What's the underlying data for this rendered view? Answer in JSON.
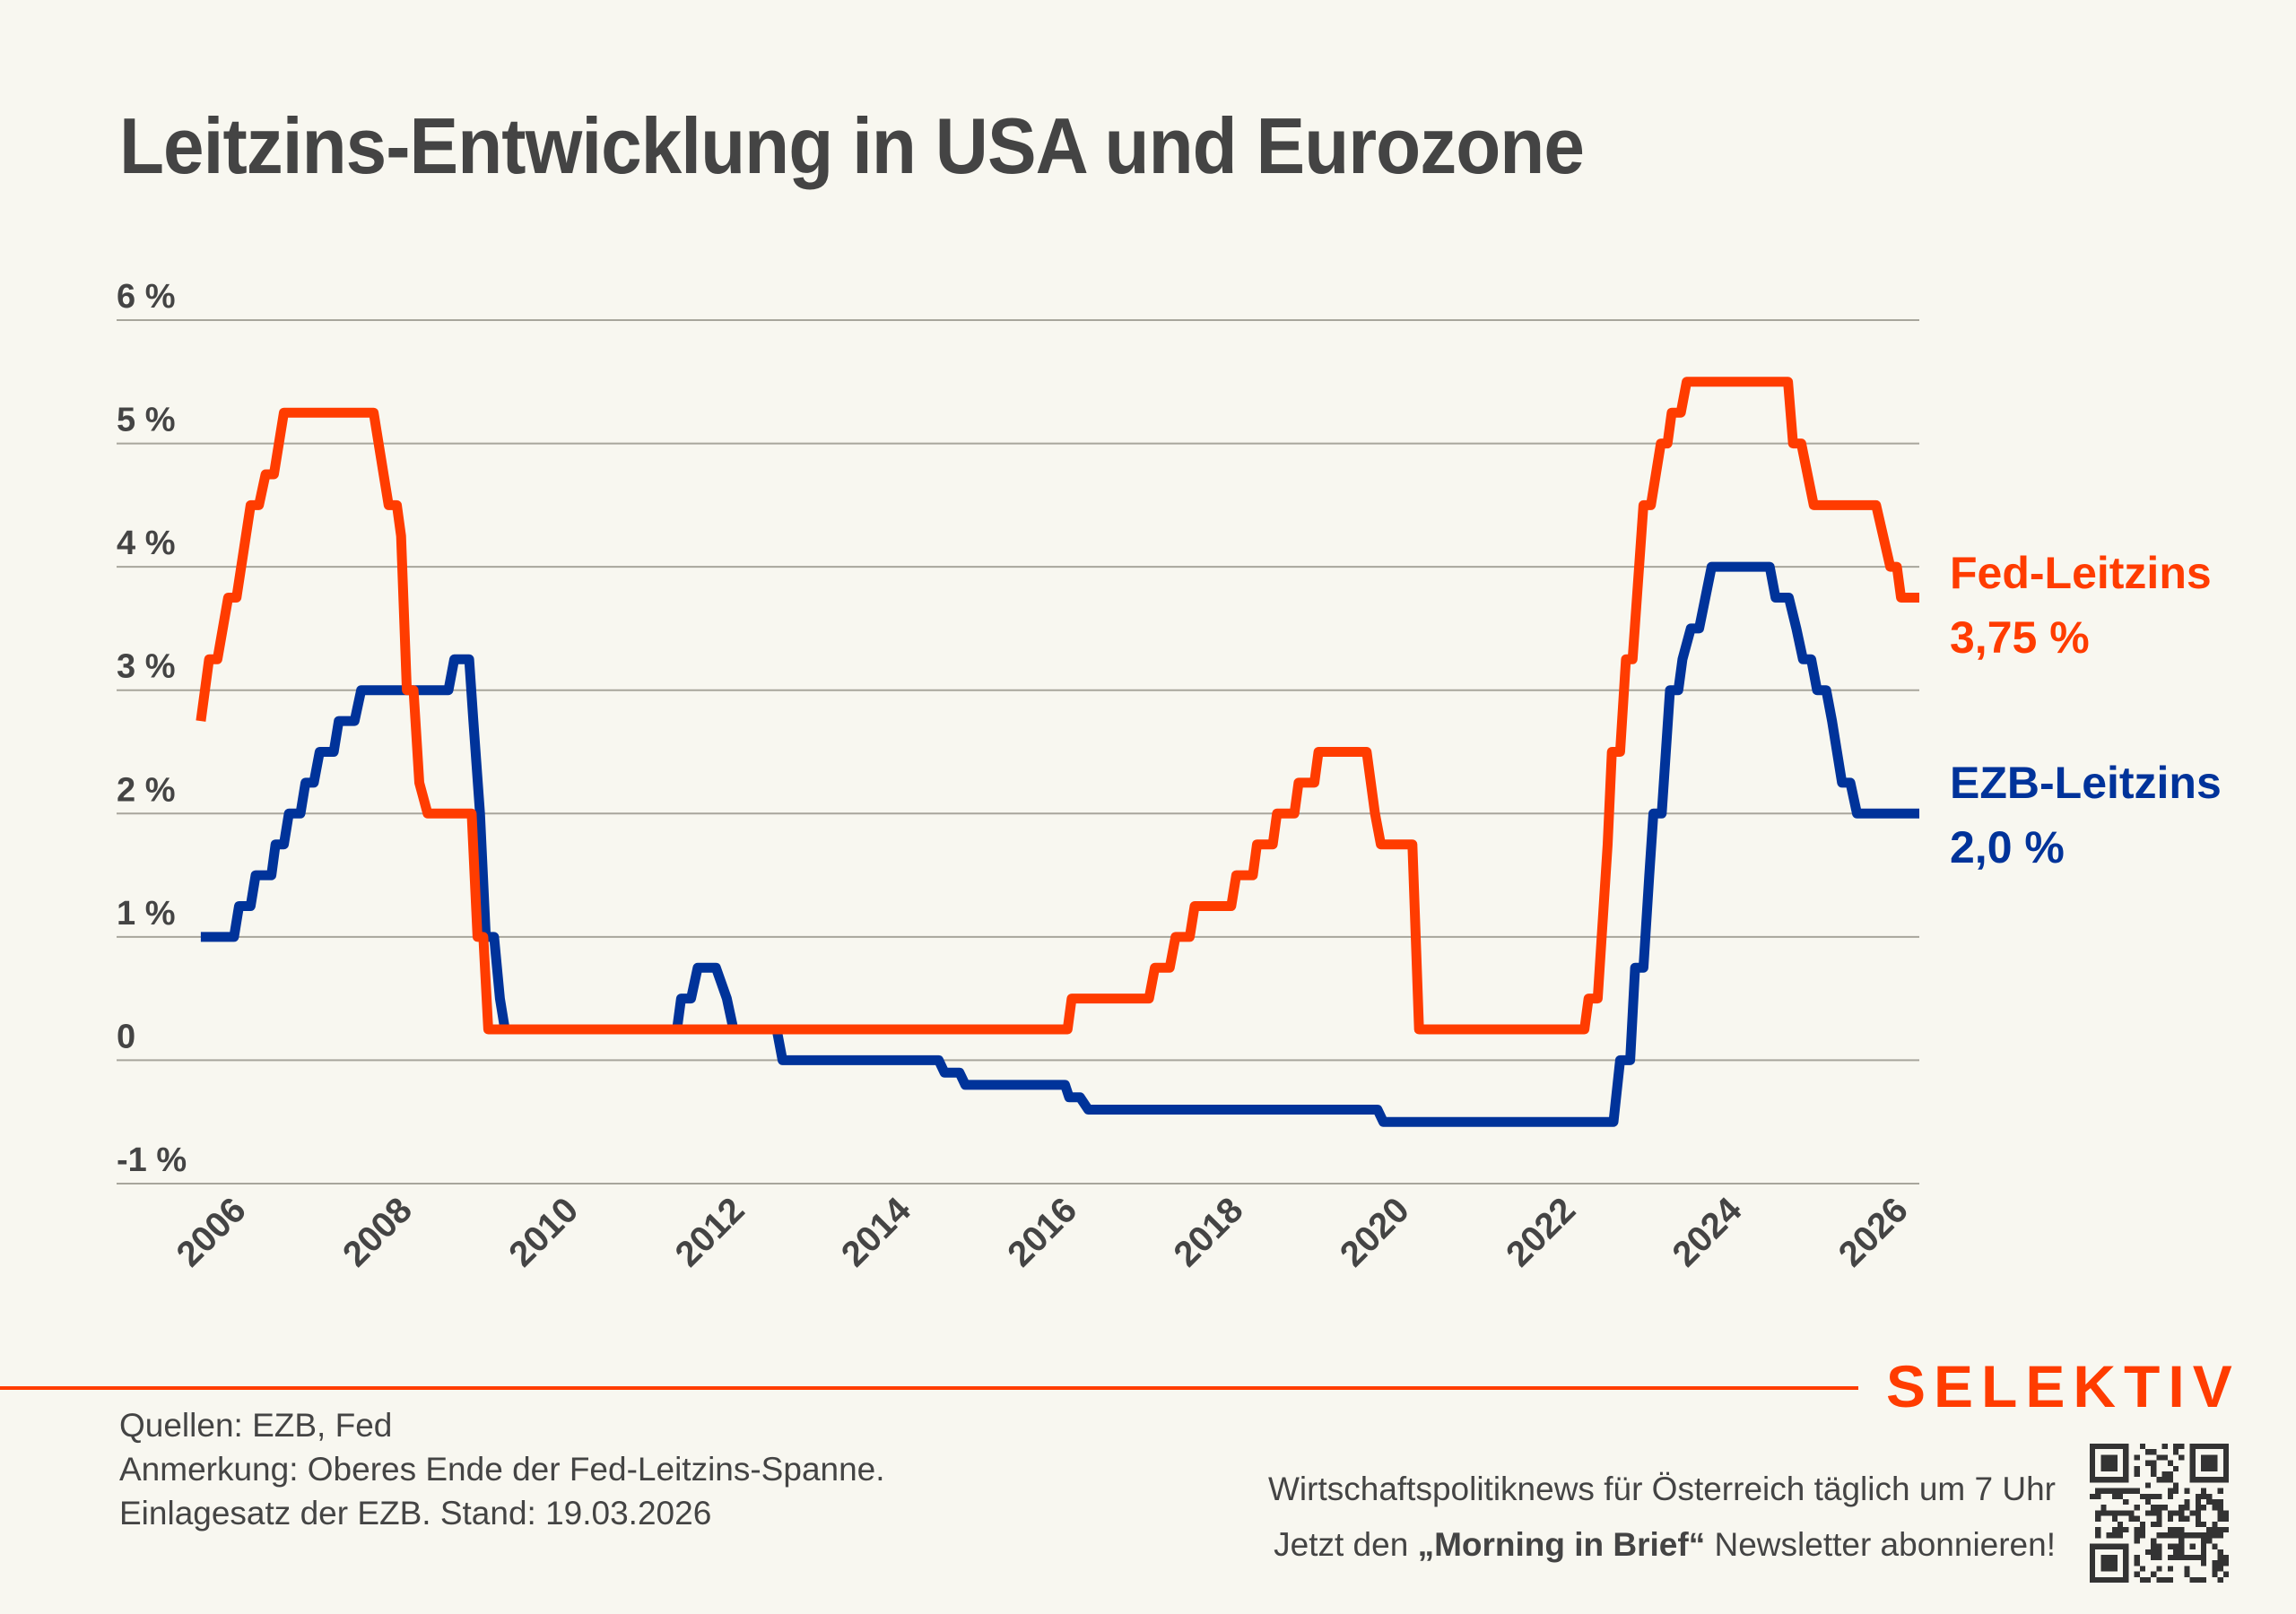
{
  "header": {
    "title": "Leitzins-Entwicklung in USA und Eurozone"
  },
  "chart_data": {
    "type": "line",
    "title": "Leitzins-Entwicklung in USA und Eurozone",
    "xlabel": "",
    "ylabel": "",
    "xlim": [
      2005.5,
      2026.2
    ],
    "ylim": [
      -1,
      6
    ],
    "grid": true,
    "legend": "right (end-of-line labels)",
    "y_ticks": [
      {
        "value": 6,
        "label": "6 %"
      },
      {
        "value": 5,
        "label": "5 %"
      },
      {
        "value": 4,
        "label": "4 %"
      },
      {
        "value": 3,
        "label": "3 %"
      },
      {
        "value": 2,
        "label": "2 %"
      },
      {
        "value": 1,
        "label": "1 %"
      },
      {
        "value": 0,
        "label": "0"
      },
      {
        "value": -1,
        "label": "-1 %"
      }
    ],
    "x_ticks": [
      {
        "value": 2006,
        "label": "2006"
      },
      {
        "value": 2008,
        "label": "2008"
      },
      {
        "value": 2010,
        "label": "2010"
      },
      {
        "value": 2012,
        "label": "2012"
      },
      {
        "value": 2014,
        "label": "2014"
      },
      {
        "value": 2016,
        "label": "2016"
      },
      {
        "value": 2018,
        "label": "2018"
      },
      {
        "value": 2020,
        "label": "2020"
      },
      {
        "value": 2022,
        "label": "2022"
      },
      {
        "value": 2024,
        "label": "2024"
      },
      {
        "value": 2026,
        "label": "2026"
      }
    ],
    "series": [
      {
        "name": "Fed-Leitzins",
        "color": "#ff3c00",
        "end_label": "Fed-Leitzins",
        "end_value_label": "3,75 %",
        "points": [
          [
            2005.52,
            2.75
          ],
          [
            2005.62,
            3.25
          ],
          [
            2005.72,
            3.25
          ],
          [
            2005.85,
            3.75
          ],
          [
            2005.95,
            3.75
          ],
          [
            2006.12,
            4.5
          ],
          [
            2006.22,
            4.5
          ],
          [
            2006.3,
            4.75
          ],
          [
            2006.4,
            4.75
          ],
          [
            2006.52,
            5.25
          ],
          [
            2007.6,
            5.25
          ],
          [
            2007.72,
            4.75
          ],
          [
            2007.78,
            4.5
          ],
          [
            2007.88,
            4.5
          ],
          [
            2007.93,
            4.25
          ],
          [
            2008.0,
            3.0
          ],
          [
            2008.08,
            3.0
          ],
          [
            2008.15,
            2.25
          ],
          [
            2008.25,
            2.0
          ],
          [
            2008.78,
            2.0
          ],
          [
            2008.85,
            1.0
          ],
          [
            2008.92,
            1.0
          ],
          [
            2008.98,
            0.25
          ],
          [
            2015.95,
            0.25
          ],
          [
            2016.0,
            0.5
          ],
          [
            2016.93,
            0.5
          ],
          [
            2017.0,
            0.75
          ],
          [
            2017.18,
            0.75
          ],
          [
            2017.25,
            1.0
          ],
          [
            2017.42,
            1.0
          ],
          [
            2017.48,
            1.25
          ],
          [
            2017.92,
            1.25
          ],
          [
            2017.98,
            1.5
          ],
          [
            2018.18,
            1.5
          ],
          [
            2018.23,
            1.75
          ],
          [
            2018.42,
            1.75
          ],
          [
            2018.47,
            2.0
          ],
          [
            2018.68,
            2.0
          ],
          [
            2018.73,
            2.25
          ],
          [
            2018.92,
            2.25
          ],
          [
            2018.97,
            2.5
          ],
          [
            2019.55,
            2.5
          ],
          [
            2019.65,
            2.0
          ],
          [
            2019.72,
            1.75
          ],
          [
            2020.1,
            1.75
          ],
          [
            2020.18,
            0.25
          ],
          [
            2022.17,
            0.25
          ],
          [
            2022.22,
            0.5
          ],
          [
            2022.33,
            0.5
          ],
          [
            2022.45,
            1.75
          ],
          [
            2022.5,
            2.5
          ],
          [
            2022.6,
            2.5
          ],
          [
            2022.67,
            3.25
          ],
          [
            2022.75,
            3.25
          ],
          [
            2022.88,
            4.5
          ],
          [
            2022.97,
            4.5
          ],
          [
            2023.09,
            5.0
          ],
          [
            2023.17,
            5.0
          ],
          [
            2023.22,
            5.25
          ],
          [
            2023.33,
            5.25
          ],
          [
            2023.4,
            5.5
          ],
          [
            2024.62,
            5.5
          ],
          [
            2024.68,
            5.0
          ],
          [
            2024.78,
            5.0
          ],
          [
            2024.93,
            4.5
          ],
          [
            2025.68,
            4.5
          ],
          [
            2025.85,
            4.0
          ],
          [
            2025.93,
            4.0
          ],
          [
            2025.98,
            3.75
          ],
          [
            2026.2,
            3.75
          ]
        ]
      },
      {
        "name": "EZB-Leitzins",
        "color": "#00339a",
        "end_label": "EZB-Leitzins",
        "end_value_label": "2,0 %",
        "points": [
          [
            2005.52,
            1.0
          ],
          [
            2005.92,
            1.0
          ],
          [
            2005.98,
            1.25
          ],
          [
            2006.12,
            1.25
          ],
          [
            2006.18,
            1.5
          ],
          [
            2006.37,
            1.5
          ],
          [
            2006.42,
            1.75
          ],
          [
            2006.52,
            1.75
          ],
          [
            2006.58,
            2.0
          ],
          [
            2006.72,
            2.0
          ],
          [
            2006.78,
            2.25
          ],
          [
            2006.88,
            2.25
          ],
          [
            2006.95,
            2.5
          ],
          [
            2007.12,
            2.5
          ],
          [
            2007.18,
            2.75
          ],
          [
            2007.37,
            2.75
          ],
          [
            2007.45,
            3.0
          ],
          [
            2008.5,
            3.0
          ],
          [
            2008.57,
            3.25
          ],
          [
            2008.75,
            3.25
          ],
          [
            2008.8,
            2.75
          ],
          [
            2008.88,
            2.0
          ],
          [
            2008.95,
            1.0
          ],
          [
            2009.05,
            1.0
          ],
          [
            2009.12,
            0.5
          ],
          [
            2009.18,
            0.25
          ],
          [
            2011.25,
            0.25
          ],
          [
            2011.3,
            0.5
          ],
          [
            2011.42,
            0.5
          ],
          [
            2011.5,
            0.75
          ],
          [
            2011.72,
            0.75
          ],
          [
            2011.85,
            0.5
          ],
          [
            2011.93,
            0.25
          ],
          [
            2012.45,
            0.25
          ],
          [
            2012.52,
            0.0
          ],
          [
            2014.4,
            0.0
          ],
          [
            2014.47,
            -0.1
          ],
          [
            2014.65,
            -0.1
          ],
          [
            2014.72,
            -0.2
          ],
          [
            2015.92,
            -0.2
          ],
          [
            2015.97,
            -0.3
          ],
          [
            2016.1,
            -0.3
          ],
          [
            2016.2,
            -0.4
          ],
          [
            2019.68,
            -0.4
          ],
          [
            2019.75,
            -0.5
          ],
          [
            2022.52,
            -0.5
          ],
          [
            2022.6,
            0.0
          ],
          [
            2022.72,
            0.0
          ],
          [
            2022.78,
            0.75
          ],
          [
            2022.88,
            0.75
          ],
          [
            2022.95,
            1.5
          ],
          [
            2023.0,
            2.0
          ],
          [
            2023.1,
            2.0
          ],
          [
            2023.15,
            2.5
          ],
          [
            2023.2,
            3.0
          ],
          [
            2023.3,
            3.0
          ],
          [
            2023.35,
            3.25
          ],
          [
            2023.45,
            3.5
          ],
          [
            2023.55,
            3.5
          ],
          [
            2023.7,
            4.0
          ],
          [
            2024.4,
            4.0
          ],
          [
            2024.47,
            3.75
          ],
          [
            2024.63,
            3.75
          ],
          [
            2024.72,
            3.5
          ],
          [
            2024.8,
            3.25
          ],
          [
            2024.9,
            3.25
          ],
          [
            2024.97,
            3.0
          ],
          [
            2025.08,
            3.0
          ],
          [
            2025.15,
            2.75
          ],
          [
            2025.27,
            2.25
          ],
          [
            2025.37,
            2.25
          ],
          [
            2025.45,
            2.0
          ],
          [
            2026.2,
            2.0
          ]
        ]
      }
    ]
  },
  "footer": {
    "notes": [
      "Quellen: EZB, Fed",
      "Anmerkung: Oberes Ende der Fed-Leitzins-Spanne.",
      "Einlagesatz der EZB. Stand: 19.03.2026"
    ],
    "brand": "SELEKTIV",
    "brand_color": "#ff3c00",
    "promo_line1": "Wirtschaftspolitiknews für Österreich täglich um 7 Uhr",
    "promo_line2_prefix": "Jetzt den ",
    "promo_line2_bold": "„Morning in Brief“",
    "promo_line2_suffix": " Newsletter abonnieren!",
    "qr_icon": "qr-code-icon"
  }
}
